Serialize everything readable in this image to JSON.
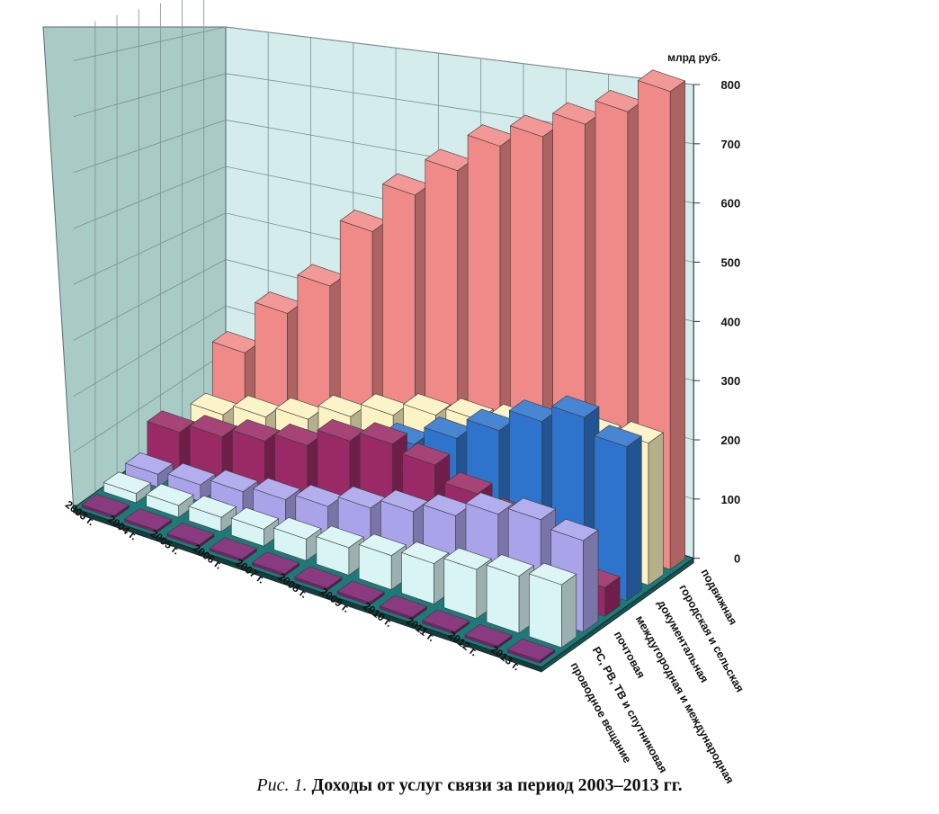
{
  "chart_data": {
    "type": "bar",
    "view": "3d-grouped-columns",
    "unit_label": "млрд руб.",
    "y_ticks": [
      0,
      100,
      200,
      300,
      400,
      500,
      600,
      700,
      800
    ],
    "ylim": [
      0,
      800
    ],
    "years": [
      "2003 г.",
      "2004 г.",
      "2005 г.",
      "2006 г.",
      "2007 г.",
      "2008 г.",
      "2009 г.",
      "2010 г.",
      "2011 г.",
      "2012 г.",
      "2013 г."
    ],
    "series": [
      {
        "name": "проводное вещание",
        "color": "#7a1f6e",
        "values": [
          2,
          2,
          2,
          2,
          2,
          2,
          2,
          2,
          2,
          2,
          2
        ]
      },
      {
        "name": "РС, РВ, ТВ и спутниковая",
        "color": "#d8f4f4",
        "values": [
          14,
          18,
          22,
          26,
          33,
          42,
          52,
          62,
          75,
          87,
          96
        ]
      },
      {
        "name": "почтовая",
        "color": "#a9a3ea",
        "values": [
          20,
          26,
          38,
          48,
          60,
          80,
          97,
          113,
          138,
          152,
          142
        ]
      },
      {
        "name": "междугородная и международная",
        "color": "#9a2a66",
        "values": [
          62,
          78,
          94,
          110,
          140,
          158,
          148,
          125,
          107,
          93,
          46
        ]
      },
      {
        "name": "документальная",
        "color": "#2f74cc",
        "values": [
          20,
          32,
          50,
          70,
          100,
          135,
          168,
          204,
          242,
          272,
          248
        ]
      },
      {
        "name": "городская и сельская",
        "color": "#fbf3c2",
        "values": [
          42,
          62,
          82,
          110,
          136,
          160,
          176,
          190,
          208,
          220,
          233
        ]
      },
      {
        "name": "подвижная",
        "color": "#f08a88",
        "values": [
          120,
          210,
          280,
          395,
          480,
          545,
          610,
          650,
          695,
          740,
          798
        ]
      }
    ]
  },
  "caption": {
    "prefix": "Рис. 1.",
    "text": "Доходы от услуг связи за период 2003–2013 гг."
  }
}
